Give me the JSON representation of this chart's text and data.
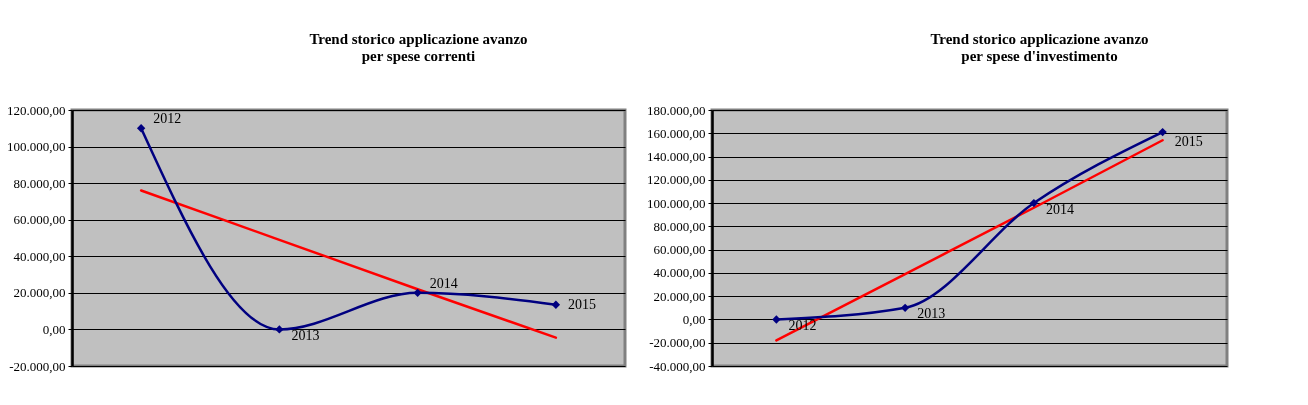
{
  "chart_data": [
    {
      "type": "line",
      "title": "Trend storico applicazione avanzo\nper spese correnti",
      "categories": [
        "2012",
        "2013",
        "2014",
        "2015"
      ],
      "marker": "diamond",
      "grid": "y",
      "tick_labels": "y",
      "ylim": [
        -20000,
        120000
      ],
      "yticks": [
        {
          "value": -20000,
          "label": "-20.000,00"
        },
        {
          "value": 0,
          "label": "0,00"
        },
        {
          "value": 20000,
          "label": "20.000,00"
        },
        {
          "value": 40000,
          "label": "40.000,00"
        },
        {
          "value": 60000,
          "label": "60.000,00"
        },
        {
          "value": 80000,
          "label": "80.000,00"
        },
        {
          "value": 100000,
          "label": "100.000,00"
        },
        {
          "value": 120000,
          "label": "120.000,00"
        }
      ],
      "series": [
        {
          "type": "line",
          "color": "#ff0000",
          "marker": "none",
          "values": [
            76000,
            49000,
            22000,
            -4500
          ]
        },
        {
          "color": "#000080",
          "values": [
            110000,
            0,
            20000,
            13500
          ]
        }
      ]
    },
    {
      "type": "line",
      "title": "Trend storico applicazione avanzo\nper spese d'investimento",
      "categories": [
        "2012",
        "2013",
        "2014",
        "2015"
      ],
      "marker": "diamond",
      "grid": "y",
      "tick_labels": "y",
      "ylim": [
        -40000,
        180000
      ],
      "yticks": [
        {
          "value": -40000,
          "label": "-40.000,00"
        },
        {
          "value": -20000,
          "label": "-20.000,00"
        },
        {
          "value": 0,
          "label": "0,00"
        },
        {
          "value": 20000,
          "label": "20.000,00"
        },
        {
          "value": 40000,
          "label": "40.000,00"
        },
        {
          "value": 60000,
          "label": "60.000,00"
        },
        {
          "value": 80000,
          "label": "80.000,00"
        },
        {
          "value": 100000,
          "label": "100.000,00"
        },
        {
          "value": 120000,
          "label": "120.000,00"
        },
        {
          "value": 140000,
          "label": "140.000,00"
        },
        {
          "value": 160000,
          "label": "160.000,00"
        },
        {
          "value": 180000,
          "label": "180.000,00"
        }
      ],
      "series": [
        {
          "type": "line",
          "color": "#ff0000",
          "marker": "none",
          "values": [
            -18000,
            39000,
            96000,
            154000
          ]
        },
        {
          "color": "#000080",
          "values": [
            0,
            10000,
            100000,
            161000
          ]
        }
      ]
    }
  ]
}
